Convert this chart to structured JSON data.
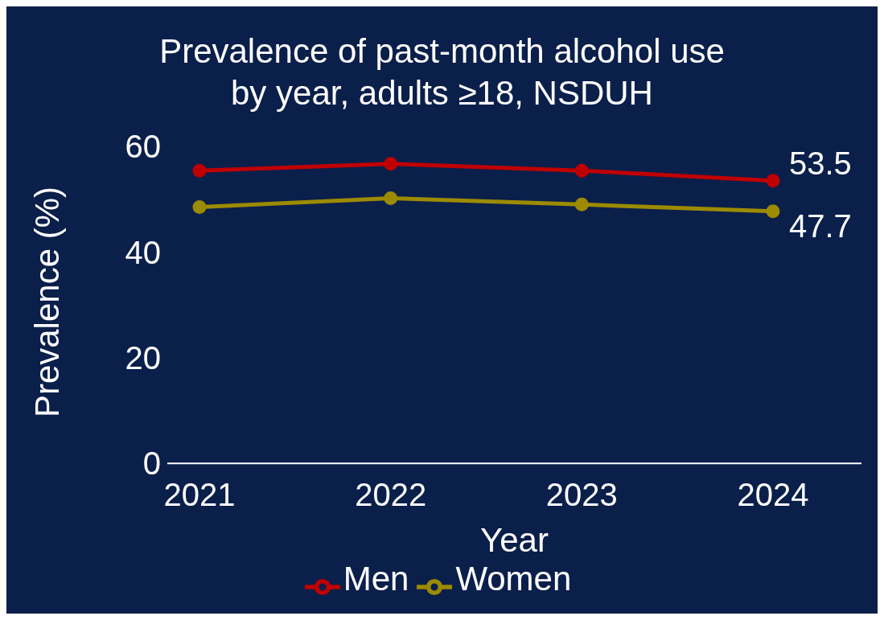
{
  "chart_data": {
    "type": "line",
    "title": "Prevalence of past-month alcohol use by year, adults ≥18, NSDUH",
    "xlabel": "Year",
    "ylabel": "Prevalence (%)",
    "categories": [
      "2021",
      "2022",
      "2023",
      "2024"
    ],
    "series": [
      {
        "name": "Men",
        "color": "#c00000",
        "values": [
          55.4,
          56.7,
          55.4,
          53.5
        ],
        "value_labels": [
          null,
          null,
          null,
          "53.5"
        ]
      },
      {
        "name": "Women",
        "color": "#9c8b00",
        "values": [
          48.5,
          50.2,
          49.0,
          47.7
        ],
        "value_labels": [
          null,
          null,
          null,
          "47.7"
        ]
      }
    ],
    "ylim": [
      0,
      60
    ],
    "yticks": [
      0,
      20,
      40,
      60
    ],
    "grid": false,
    "legend": "bottom",
    "marker": "circle",
    "line_style": "solid"
  }
}
